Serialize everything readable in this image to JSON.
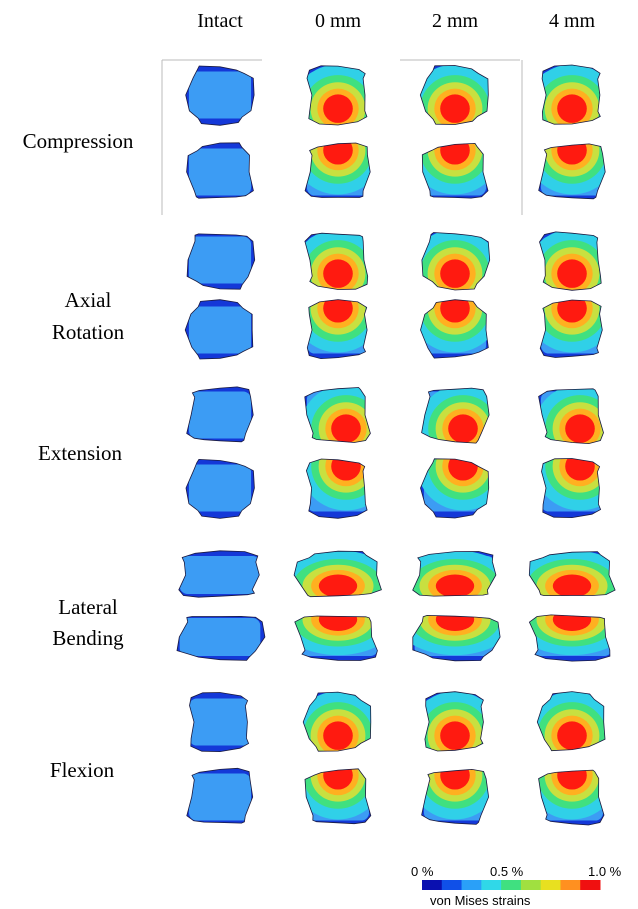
{
  "header": {
    "columns": [
      "Intact",
      "0 mm",
      "2 mm",
      "4 mm"
    ]
  },
  "rows": [
    {
      "label": [
        "Compression"
      ]
    },
    {
      "label": [
        "Axial",
        "Rotation"
      ]
    },
    {
      "label": [
        "Extension"
      ]
    },
    {
      "label": [
        "Lateral",
        "Bending"
      ]
    },
    {
      "label": [
        "Flexion"
      ]
    }
  ],
  "colorbar": {
    "labels": [
      "0 %",
      "0.5 %",
      "1.0 %"
    ],
    "title": "von Mises strains"
  }
}
